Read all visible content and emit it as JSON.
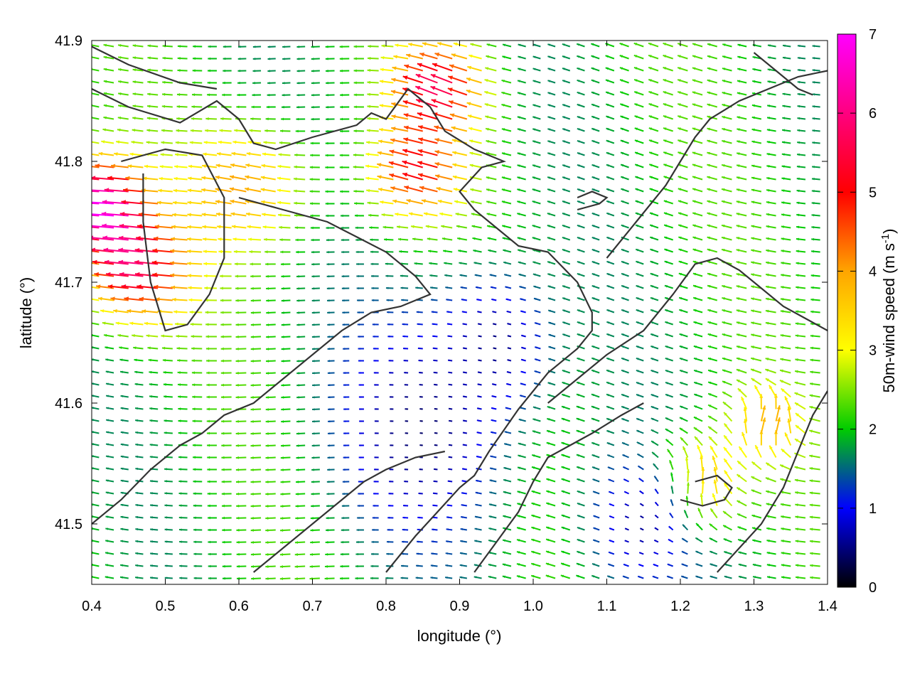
{
  "chart_data": {
    "type": "quiver",
    "xlabel": "longitude (°)",
    "ylabel": "latitude (°)",
    "xlim": [
      0.4,
      1.4
    ],
    "ylim": [
      41.45,
      41.9
    ],
    "xticks": [
      0.4,
      0.5,
      0.6,
      0.7,
      0.8,
      0.9,
      1.0,
      1.1,
      1.2,
      1.3,
      1.4
    ],
    "xtick_labels": [
      "0.4",
      "0.5",
      "0.6",
      "0.7",
      "0.8",
      "0.9",
      "1.0",
      "1.1",
      "1.2",
      "1.3",
      "1.4"
    ],
    "yticks": [
      41.5,
      41.6,
      41.7,
      41.8,
      41.9
    ],
    "ytick_labels": [
      "41.5",
      "41.6",
      "41.7",
      "41.8",
      "41.9"
    ],
    "colorbar": {
      "label_main": "50m-wind speed (m s",
      "label_sup": "-1",
      "label_close": ")",
      "range": [
        0,
        7
      ],
      "ticks": [
        0,
        1,
        2,
        3,
        4,
        5,
        6,
        7
      ],
      "tick_labels": [
        "0",
        "1",
        "2",
        "3",
        "4",
        "5",
        "6",
        "7"
      ],
      "colors": [
        "#000000",
        "#0000ff",
        "#00cc00",
        "#ffff00",
        "#ffa500",
        "#ff0000",
        "#ff00ff"
      ]
    },
    "grid": false,
    "contour_color": "#333333",
    "contours": [
      [
        [
          0.4,
          41.895
        ],
        [
          0.45,
          41.88
        ],
        [
          0.52,
          41.865
        ],
        [
          0.57,
          41.86
        ]
      ],
      [
        [
          0.4,
          41.86
        ],
        [
          0.45,
          41.845
        ],
        [
          0.52,
          41.832
        ],
        [
          0.57,
          41.85
        ],
        [
          0.6,
          41.835
        ],
        [
          0.62,
          41.815
        ],
        [
          0.65,
          41.81
        ],
        [
          0.7,
          41.82
        ],
        [
          0.76,
          41.83
        ],
        [
          0.78,
          41.84
        ],
        [
          0.8,
          41.835
        ],
        [
          0.83,
          41.86
        ],
        [
          0.86,
          41.845
        ],
        [
          0.88,
          41.825
        ],
        [
          0.92,
          41.81
        ],
        [
          0.96,
          41.8
        ],
        [
          0.93,
          41.795
        ],
        [
          0.9,
          41.775
        ],
        [
          0.92,
          41.76
        ],
        [
          0.95,
          41.745
        ],
        [
          0.98,
          41.73
        ],
        [
          1.02,
          41.725
        ],
        [
          1.06,
          41.7
        ],
        [
          1.08,
          41.675
        ],
        [
          1.08,
          41.66
        ],
        [
          1.06,
          41.645
        ],
        [
          1.02,
          41.625
        ],
        [
          1.0,
          41.61
        ],
        [
          0.98,
          41.595
        ],
        [
          0.94,
          41.56
        ],
        [
          0.92,
          41.54
        ],
        [
          0.9,
          41.53
        ],
        [
          0.87,
          41.51
        ],
        [
          0.84,
          41.49
        ],
        [
          0.8,
          41.46
        ]
      ],
      [
        [
          0.44,
          41.8
        ],
        [
          0.5,
          41.81
        ],
        [
          0.55,
          41.805
        ],
        [
          0.58,
          41.77
        ],
        [
          0.58,
          41.72
        ],
        [
          0.56,
          41.69
        ],
        [
          0.53,
          41.665
        ],
        [
          0.5,
          41.66
        ],
        [
          0.48,
          41.7
        ],
        [
          0.47,
          41.75
        ],
        [
          0.47,
          41.79
        ]
      ],
      [
        [
          0.6,
          41.77
        ],
        [
          0.66,
          41.76
        ],
        [
          0.72,
          41.75
        ],
        [
          0.8,
          41.725
        ],
        [
          0.84,
          41.705
        ],
        [
          0.86,
          41.69
        ],
        [
          0.82,
          41.68
        ],
        [
          0.78,
          41.675
        ],
        [
          0.74,
          41.66
        ],
        [
          0.7,
          41.64
        ],
        [
          0.66,
          41.62
        ],
        [
          0.62,
          41.6
        ],
        [
          0.58,
          41.59
        ],
        [
          0.55,
          41.575
        ],
        [
          0.52,
          41.565
        ],
        [
          0.48,
          41.545
        ],
        [
          0.44,
          41.52
        ],
        [
          0.4,
          41.5
        ]
      ],
      [
        [
          1.02,
          41.6
        ],
        [
          1.06,
          41.62
        ],
        [
          1.1,
          41.64
        ],
        [
          1.15,
          41.66
        ],
        [
          1.19,
          41.69
        ],
        [
          1.22,
          41.715
        ],
        [
          1.25,
          41.72
        ],
        [
          1.28,
          41.71
        ],
        [
          1.31,
          41.695
        ],
        [
          1.34,
          41.68
        ],
        [
          1.37,
          41.67
        ],
        [
          1.4,
          41.66
        ]
      ],
      [
        [
          1.1,
          41.72
        ],
        [
          1.14,
          41.75
        ],
        [
          1.18,
          41.78
        ],
        [
          1.2,
          41.8
        ],
        [
          1.22,
          41.82
        ],
        [
          1.24,
          41.835
        ],
        [
          1.28,
          41.85
        ],
        [
          1.32,
          41.86
        ],
        [
          1.36,
          41.87
        ],
        [
          1.4,
          41.875
        ]
      ],
      [
        [
          0.92,
          41.46
        ],
        [
          0.95,
          41.485
        ],
        [
          0.98,
          41.51
        ],
        [
          1.0,
          41.535
        ],
        [
          1.02,
          41.555
        ],
        [
          1.05,
          41.565
        ],
        [
          1.08,
          41.575
        ],
        [
          1.12,
          41.59
        ],
        [
          1.15,
          41.6
        ]
      ],
      [
        [
          1.25,
          41.46
        ],
        [
          1.28,
          41.48
        ],
        [
          1.31,
          41.5
        ],
        [
          1.34,
          41.53
        ],
        [
          1.36,
          41.56
        ],
        [
          1.38,
          41.59
        ],
        [
          1.4,
          41.61
        ]
      ],
      [
        [
          0.62,
          41.46
        ],
        [
          0.66,
          41.48
        ],
        [
          0.7,
          41.5
        ],
        [
          0.74,
          41.52
        ],
        [
          0.77,
          41.535
        ],
        [
          0.8,
          41.545
        ],
        [
          0.84,
          41.555
        ],
        [
          0.88,
          41.56
        ]
      ],
      [
        [
          1.2,
          41.52
        ],
        [
          1.23,
          41.515
        ],
        [
          1.26,
          41.52
        ],
        [
          1.27,
          41.53
        ],
        [
          1.25,
          41.54
        ],
        [
          1.22,
          41.535
        ]
      ],
      [
        [
          1.06,
          41.76
        ],
        [
          1.09,
          41.765
        ],
        [
          1.1,
          41.77
        ],
        [
          1.08,
          41.775
        ],
        [
          1.06,
          41.77
        ]
      ],
      [
        [
          1.3,
          41.89
        ],
        [
          1.33,
          41.875
        ],
        [
          1.36,
          41.86
        ],
        [
          1.38,
          41.855
        ]
      ]
    ],
    "vector_field": {
      "x_start": 0.41,
      "x_step": 0.02,
      "x_count": 50,
      "y_start": 41.455,
      "y_step": 0.01,
      "y_count": 45,
      "wind_centers": [
        {
          "x": 0.42,
          "y": 41.765,
          "speed": 6.6,
          "u": -1.0,
          "v": 0.05,
          "r": 0.06
        },
        {
          "x": 0.47,
          "y": 41.71,
          "speed": 5.6,
          "u": -1.0,
          "v": 0.1,
          "r": 0.07
        },
        {
          "x": 0.62,
          "y": 41.78,
          "speed": 4.0,
          "u": -1.0,
          "v": 0.2,
          "r": 0.08
        },
        {
          "x": 0.88,
          "y": 41.86,
          "speed": 5.4,
          "u": -1.0,
          "v": 0.4,
          "r": 0.06
        },
        {
          "x": 0.85,
          "y": 41.79,
          "speed": 4.8,
          "u": -1.0,
          "v": 0.3,
          "r": 0.06
        },
        {
          "x": 1.22,
          "y": 41.53,
          "speed": 4.8,
          "u": 0.1,
          "v": 1.0,
          "r": 0.06
        },
        {
          "x": 1.32,
          "y": 41.58,
          "speed": 3.6,
          "u": 0.3,
          "v": 1.0,
          "r": 0.05
        }
      ],
      "background_speed": 2.0,
      "calm_zones": [
        {
          "x": 0.85,
          "y": 41.58,
          "r": 0.12,
          "speed": 0.4
        },
        {
          "x": 1.15,
          "y": 41.5,
          "r": 0.08,
          "speed": 0.6
        },
        {
          "x": 0.95,
          "y": 41.65,
          "r": 0.08,
          "speed": 0.5
        }
      ]
    }
  }
}
